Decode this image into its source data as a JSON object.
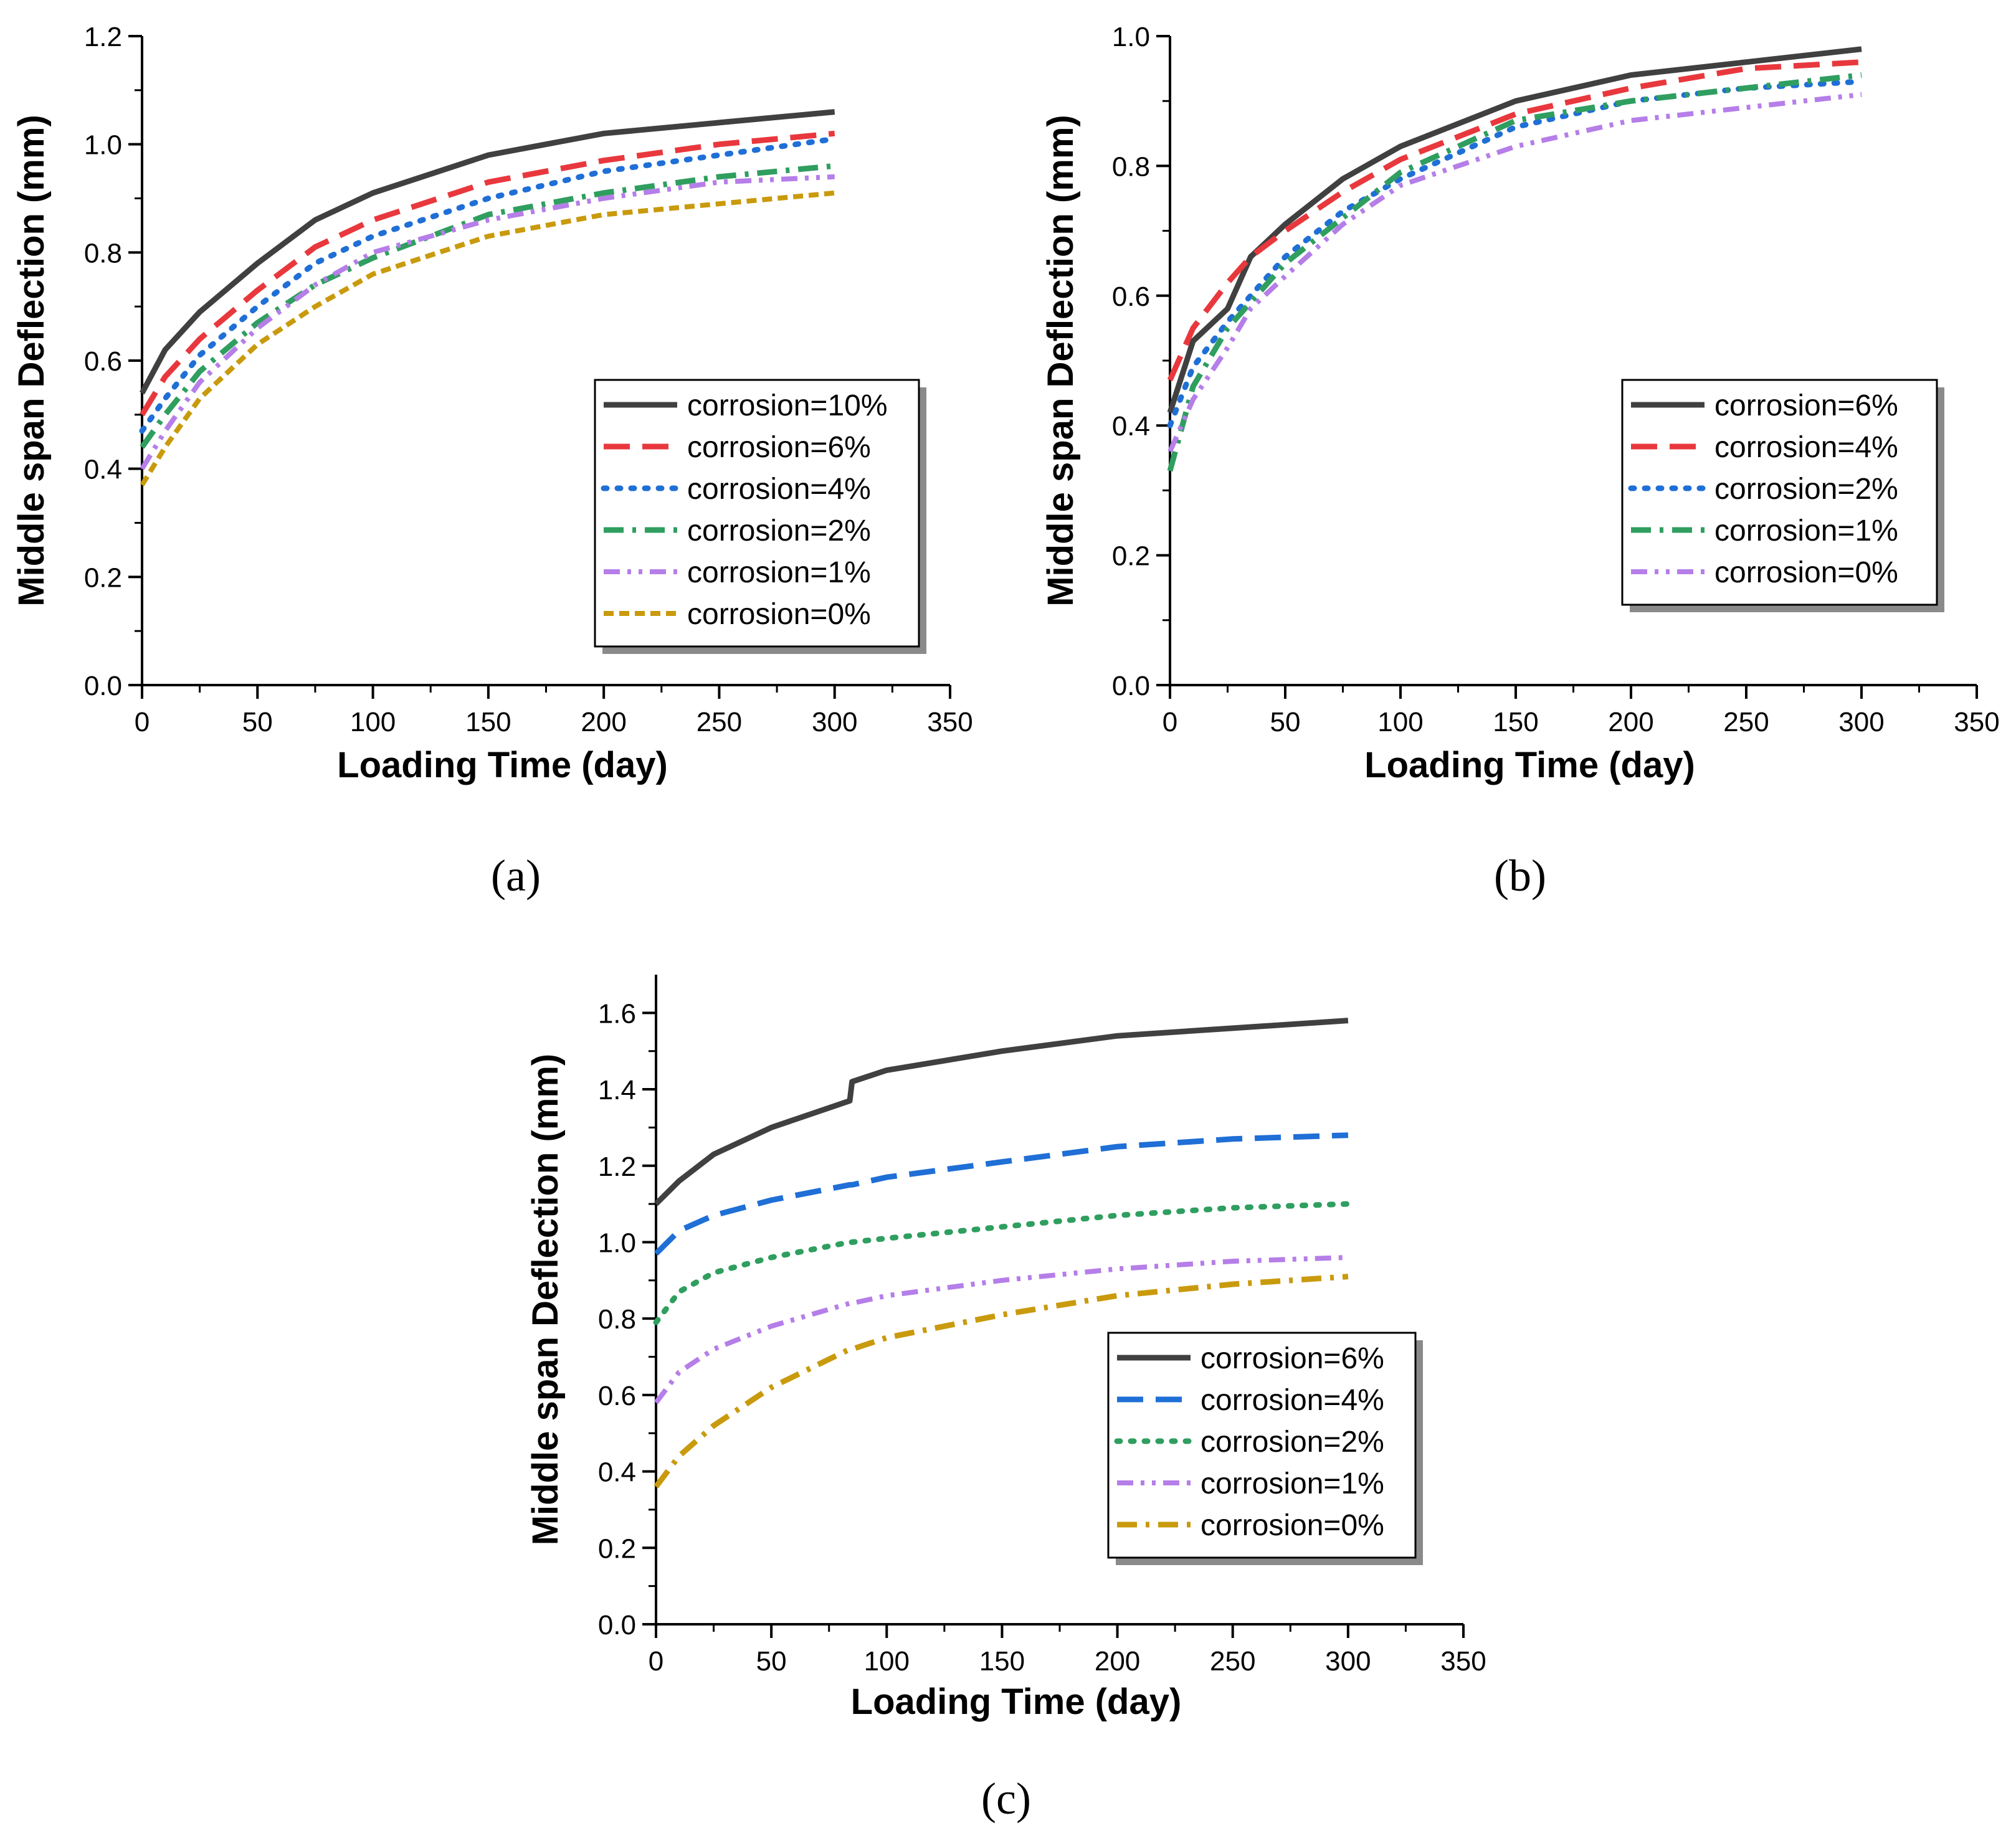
{
  "colors": {
    "dark": "#404040",
    "red": "#e8383d",
    "blue": "#1f6fd6",
    "green": "#2f9e5f",
    "purple": "#b57ee8",
    "gold": "#c99a0c"
  },
  "chart_data": [
    {
      "type": "line",
      "caption": "(a)",
      "xlabel": "Loading Time (day)",
      "ylabel": "Middle span Deflection (mm)",
      "xlim": [
        0,
        350
      ],
      "ylim": [
        0,
        1.2
      ],
      "xticks": [
        0,
        50,
        100,
        150,
        200,
        250,
        300,
        350
      ],
      "yticks": [
        0.0,
        0.2,
        0.4,
        0.6,
        0.8,
        1.0,
        1.2
      ],
      "ytick_labels": [
        "0.0",
        "0.2",
        "0.4",
        "0.6",
        "0.8",
        "1.0",
        "1.2"
      ],
      "legend_position": "right-middle",
      "x": [
        0,
        10,
        25,
        50,
        75,
        100,
        150,
        200,
        250,
        300
      ],
      "series": [
        {
          "name": "corrosion=10%",
          "color": "dark",
          "dash": "solid",
          "values": [
            0.54,
            0.62,
            0.69,
            0.78,
            0.86,
            0.91,
            0.98,
            1.02,
            1.04,
            1.06
          ]
        },
        {
          "name": "corrosion=6%",
          "color": "red",
          "dash": "longdash",
          "values": [
            0.5,
            0.57,
            0.64,
            0.73,
            0.81,
            0.86,
            0.93,
            0.97,
            1.0,
            1.02
          ]
        },
        {
          "name": "corrosion=4%",
          "color": "blue",
          "dash": "dot",
          "values": [
            0.47,
            0.53,
            0.61,
            0.7,
            0.78,
            0.83,
            0.9,
            0.95,
            0.98,
            1.01
          ]
        },
        {
          "name": "corrosion=2%",
          "color": "green",
          "dash": "dashdot",
          "values": [
            0.44,
            0.5,
            0.58,
            0.67,
            0.74,
            0.79,
            0.87,
            0.91,
            0.94,
            0.96
          ]
        },
        {
          "name": "corrosion=1%",
          "color": "purple",
          "dash": "dashdotdot",
          "values": [
            0.4,
            0.47,
            0.56,
            0.66,
            0.74,
            0.8,
            0.86,
            0.9,
            0.93,
            0.94
          ]
        },
        {
          "name": "corrosion=0%",
          "color": "gold",
          "dash": "shortdash",
          "values": [
            0.37,
            0.44,
            0.53,
            0.63,
            0.7,
            0.76,
            0.83,
            0.87,
            0.89,
            0.91
          ]
        }
      ]
    },
    {
      "type": "line",
      "caption": "(b)",
      "xlabel": "Loading Time (day)",
      "ylabel": "Middle span Deflection (mm)",
      "xlim": [
        0,
        350
      ],
      "ylim": [
        0,
        1.0
      ],
      "xticks": [
        0,
        50,
        100,
        150,
        200,
        250,
        300,
        350
      ],
      "yticks": [
        0.0,
        0.2,
        0.4,
        0.6,
        0.8,
        1.0
      ],
      "ytick_labels": [
        "0.0",
        "0.2",
        "0.4",
        "0.6",
        "0.8",
        "1.0"
      ],
      "legend_position": "right-middle",
      "x": [
        0,
        10,
        25,
        35,
        50,
        75,
        100,
        150,
        200,
        250,
        300
      ],
      "series": [
        {
          "name": "corrosion=6%",
          "color": "dark",
          "dash": "solid",
          "values": [
            0.42,
            0.53,
            0.58,
            0.66,
            0.71,
            0.78,
            0.83,
            0.9,
            0.94,
            0.96,
            0.98
          ]
        },
        {
          "name": "corrosion=4%",
          "color": "red",
          "dash": "longdash",
          "values": [
            0.47,
            0.55,
            0.62,
            0.66,
            0.7,
            0.76,
            0.81,
            0.88,
            0.92,
            0.95,
            0.96
          ]
        },
        {
          "name": "corrosion=2%",
          "color": "blue",
          "dash": "dot",
          "values": [
            0.4,
            0.49,
            0.56,
            0.6,
            0.66,
            0.73,
            0.78,
            0.86,
            0.9,
            0.92,
            0.93
          ]
        },
        {
          "name": "corrosion=1%",
          "color": "green",
          "dash": "dashdot",
          "values": [
            0.33,
            0.46,
            0.55,
            0.59,
            0.65,
            0.72,
            0.79,
            0.87,
            0.9,
            0.92,
            0.94
          ]
        },
        {
          "name": "corrosion=0%",
          "color": "purple",
          "dash": "dashdotdot",
          "values": [
            0.36,
            0.44,
            0.52,
            0.58,
            0.63,
            0.71,
            0.77,
            0.83,
            0.87,
            0.89,
            0.91
          ]
        }
      ]
    },
    {
      "type": "line",
      "caption": "(c)",
      "xlabel": "Loading Time (day)",
      "ylabel": "Middle span Deflection (mm)",
      "xlim": [
        0,
        350
      ],
      "ylim": [
        0,
        1.7
      ],
      "xticks": [
        0,
        50,
        100,
        150,
        200,
        250,
        300,
        350
      ],
      "yticks": [
        0.0,
        0.2,
        0.4,
        0.6,
        0.8,
        1.0,
        1.2,
        1.4,
        1.6
      ],
      "ytick_labels": [
        "0.0",
        "0.2",
        "0.4",
        "0.6",
        "0.8",
        "1.0",
        "1.2",
        "1.4",
        "1.6"
      ],
      "legend_position": "right-lower",
      "x": [
        0,
        10,
        25,
        50,
        84,
        85,
        100,
        150,
        200,
        250,
        300
      ],
      "series": [
        {
          "name": "corrosion=6%",
          "color": "dark",
          "dash": "solid",
          "values": [
            1.1,
            1.16,
            1.23,
            1.3,
            1.37,
            1.42,
            1.45,
            1.5,
            1.54,
            1.56,
            1.58
          ]
        },
        {
          "name": "corrosion=4%",
          "color": "blue",
          "dash": "longdash",
          "values": [
            0.97,
            1.03,
            1.07,
            1.11,
            1.15,
            1.15,
            1.17,
            1.21,
            1.25,
            1.27,
            1.28
          ]
        },
        {
          "name": "corrosion=2%",
          "color": "green",
          "dash": "dot",
          "values": [
            0.79,
            0.87,
            0.92,
            0.96,
            1.0,
            1.0,
            1.01,
            1.04,
            1.07,
            1.09,
            1.1
          ]
        },
        {
          "name": "corrosion=1%",
          "color": "purple",
          "dash": "dashdotdot",
          "values": [
            0.58,
            0.66,
            0.72,
            0.78,
            0.84,
            0.84,
            0.86,
            0.9,
            0.93,
            0.95,
            0.96
          ]
        },
        {
          "name": "corrosion=0%",
          "color": "gold",
          "dash": "dashdot",
          "values": [
            0.36,
            0.44,
            0.52,
            0.62,
            0.72,
            0.72,
            0.75,
            0.81,
            0.86,
            0.89,
            0.91
          ]
        }
      ]
    }
  ]
}
